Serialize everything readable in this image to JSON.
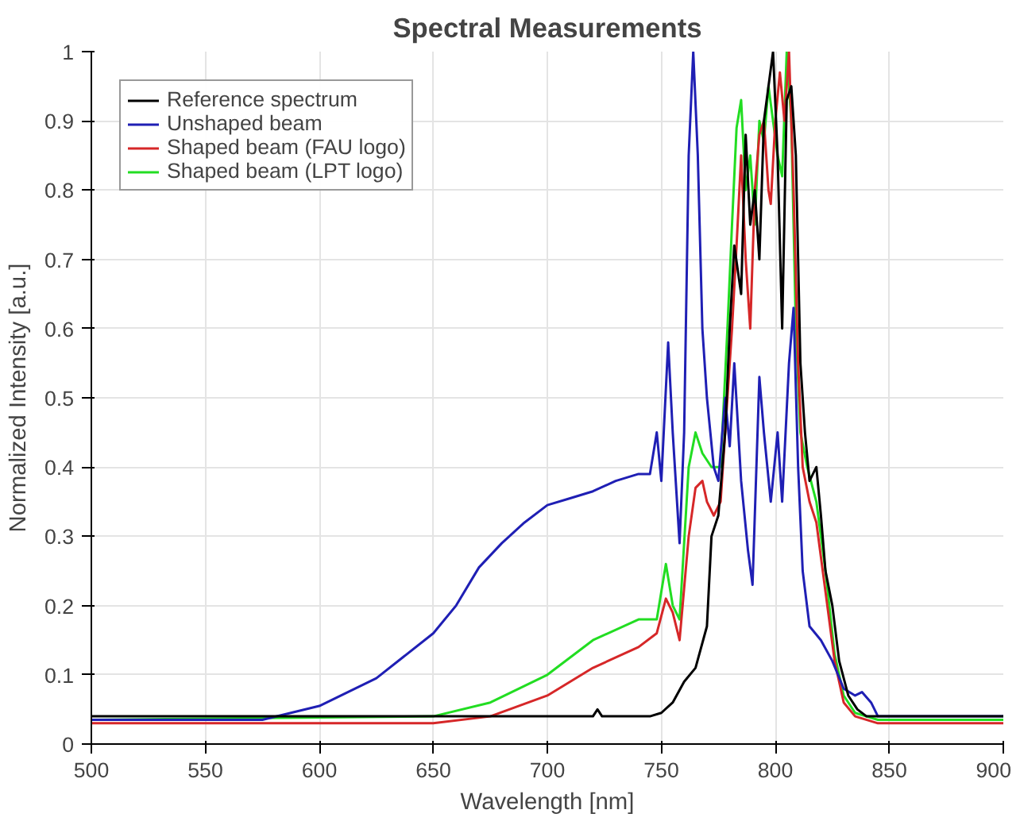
{
  "chart_data": {
    "type": "line",
    "title": "Spectral Measurements",
    "xlabel": "Wavelength [nm]",
    "ylabel": "Normalized Intensity [a.u.]",
    "xlim": [
      500,
      900
    ],
    "ylim": [
      0,
      1
    ],
    "xticks": [
      500,
      550,
      600,
      650,
      700,
      750,
      800,
      850,
      900
    ],
    "yticks": [
      0,
      0.1,
      0.2,
      0.3,
      0.4,
      0.5,
      0.6,
      0.7,
      0.8,
      0.9,
      1
    ],
    "grid": true,
    "legend": "top left",
    "series": [
      {
        "name": "Reference spectrum",
        "color": "#000000",
        "x": [
          500,
          600,
          700,
          720,
          722,
          724,
          745,
          750,
          755,
          760,
          765,
          770,
          772,
          775,
          778,
          780,
          782,
          785,
          787,
          789,
          791,
          793,
          795,
          797,
          799,
          801,
          803,
          805,
          807,
          809,
          811,
          813,
          815,
          818,
          820,
          822,
          825,
          828,
          832,
          836,
          840,
          900
        ],
        "values": [
          0.04,
          0.04,
          0.04,
          0.04,
          0.05,
          0.04,
          0.04,
          0.045,
          0.06,
          0.09,
          0.11,
          0.17,
          0.3,
          0.33,
          0.45,
          0.6,
          0.72,
          0.65,
          0.88,
          0.75,
          0.8,
          0.7,
          0.9,
          0.95,
          1.0,
          0.85,
          0.6,
          0.93,
          0.95,
          0.85,
          0.55,
          0.45,
          0.38,
          0.4,
          0.33,
          0.25,
          0.2,
          0.12,
          0.07,
          0.05,
          0.04,
          0.04
        ]
      },
      {
        "name": "Unshaped beam",
        "color": "#1f1fb4",
        "x": [
          500,
          575,
          600,
          625,
          650,
          660,
          670,
          680,
          690,
          700,
          710,
          720,
          730,
          740,
          745,
          748,
          750,
          753,
          755,
          758,
          760,
          762,
          764,
          766,
          768,
          770,
          773,
          775,
          778,
          780,
          782,
          785,
          788,
          790,
          793,
          795,
          798,
          801,
          803,
          806,
          808,
          810,
          812,
          815,
          820,
          825,
          830,
          835,
          838,
          842,
          845,
          850,
          900
        ],
        "values": [
          0.035,
          0.035,
          0.055,
          0.095,
          0.16,
          0.2,
          0.255,
          0.29,
          0.32,
          0.345,
          0.355,
          0.365,
          0.38,
          0.39,
          0.39,
          0.45,
          0.38,
          0.58,
          0.45,
          0.29,
          0.45,
          0.85,
          1.0,
          0.85,
          0.6,
          0.5,
          0.4,
          0.38,
          0.5,
          0.43,
          0.55,
          0.38,
          0.28,
          0.23,
          0.53,
          0.45,
          0.35,
          0.45,
          0.35,
          0.55,
          0.63,
          0.4,
          0.25,
          0.17,
          0.15,
          0.12,
          0.08,
          0.07,
          0.075,
          0.06,
          0.04,
          0.04,
          0.04
        ]
      },
      {
        "name": "Shaped beam (FAU logo)",
        "color": "#d62728",
        "x": [
          500,
          650,
          675,
          700,
          720,
          740,
          748,
          752,
          755,
          758,
          762,
          765,
          768,
          770,
          773,
          776,
          779,
          781,
          783,
          785,
          787,
          789,
          791,
          793,
          795,
          797,
          798,
          800,
          802,
          804,
          806,
          808,
          810,
          812,
          815,
          818,
          822,
          826,
          830,
          835,
          845,
          900
        ],
        "values": [
          0.03,
          0.03,
          0.04,
          0.07,
          0.11,
          0.14,
          0.16,
          0.21,
          0.19,
          0.15,
          0.3,
          0.37,
          0.38,
          0.35,
          0.33,
          0.35,
          0.5,
          0.6,
          0.72,
          0.85,
          0.7,
          0.6,
          0.8,
          0.88,
          0.9,
          0.8,
          0.78,
          0.9,
          0.97,
          0.9,
          1.0,
          0.8,
          0.55,
          0.4,
          0.35,
          0.32,
          0.22,
          0.12,
          0.06,
          0.04,
          0.03,
          0.03
        ]
      },
      {
        "name": "Shaped beam (LPT logo)",
        "color": "#22dd22",
        "x": [
          500,
          650,
          675,
          700,
          720,
          740,
          748,
          752,
          755,
          758,
          762,
          765,
          768,
          772,
          776,
          779,
          781,
          783,
          785,
          787,
          789,
          791,
          793,
          795,
          797,
          799,
          801,
          803,
          805,
          807,
          809,
          811,
          814,
          818,
          822,
          826,
          830,
          835,
          845,
          900
        ],
        "values": [
          0.035,
          0.04,
          0.06,
          0.1,
          0.15,
          0.18,
          0.18,
          0.26,
          0.2,
          0.18,
          0.4,
          0.45,
          0.42,
          0.4,
          0.4,
          0.6,
          0.75,
          0.89,
          0.93,
          0.8,
          0.85,
          0.75,
          0.9,
          0.87,
          0.95,
          0.9,
          0.85,
          0.82,
          1.0,
          0.9,
          0.6,
          0.45,
          0.4,
          0.35,
          0.25,
          0.13,
          0.07,
          0.045,
          0.035,
          0.035
        ]
      }
    ]
  }
}
